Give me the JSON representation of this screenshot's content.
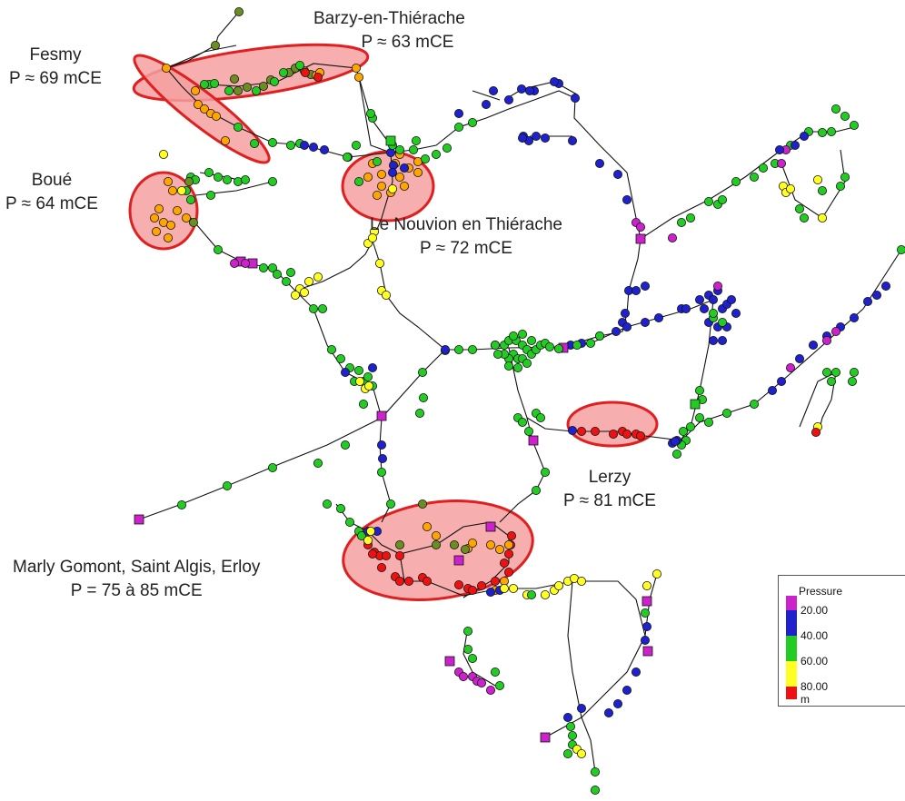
{
  "labels": {
    "barzy": {
      "name": "Barzy-en-Thiérache",
      "pressure": "P ≈ 63 mCE"
    },
    "fesmy": {
      "name": "Fesmy",
      "pressure": "P ≈ 69 mCE"
    },
    "boue": {
      "name": "Boué",
      "pressure": "P ≈ 64 mCE"
    },
    "nouvion": {
      "name": "Le Nouvion en Thiérache",
      "pressure": "P ≈ 72 mCE"
    },
    "lerzy": {
      "name": "Lerzy",
      "pressure": "P ≈ 81 mCE"
    },
    "marly": {
      "name": "Marly Gomont, Saint Algis, Erloy",
      "pressure": "P = 75 à 85 mCE"
    }
  },
  "legend": {
    "title": "Pressure",
    "ticks": [
      "20.00",
      "40.00",
      "60.00",
      "80.00"
    ],
    "unit": "m",
    "colors": [
      "#cc22cc",
      "#1f22cc",
      "#22cc22",
      "#ffff22",
      "#ee1111"
    ]
  },
  "colors": {
    "magenta": "#cc22cc",
    "blue": "#1f22cc",
    "green": "#22cc22",
    "yellow": "#ffff22",
    "orange": "#ffa500",
    "darkgreen": "#6b8e23",
    "red": "#ee1111",
    "zone_fill": "#f5a0a0",
    "zone_stroke": "#e02020"
  }
}
